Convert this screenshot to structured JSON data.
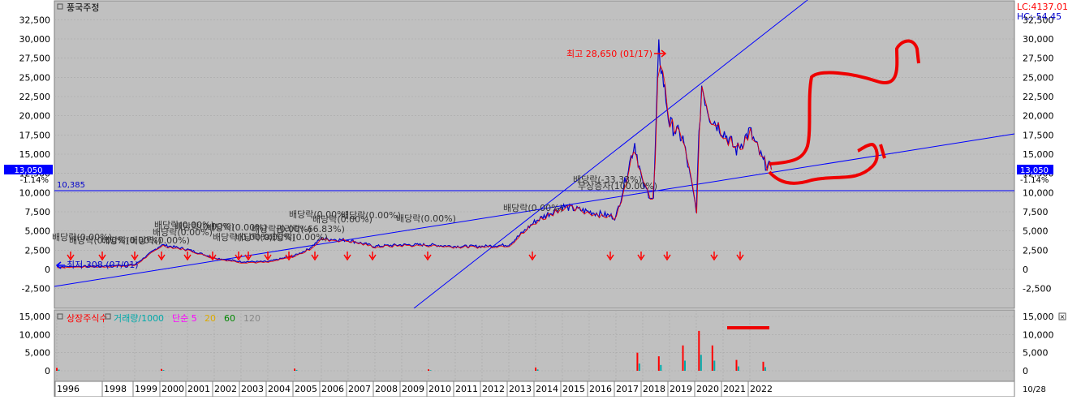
{
  "window": {
    "title": "풍국주정",
    "lc_readout": "LC:4137.01",
    "hc_readout": "HC:-54.45",
    "close_icon": "close-icon",
    "colors": {
      "plot_bg": "#c0c0c0",
      "panel_bg": "#ffffff",
      "grid": "#a8a8a8",
      "price_line": "#0000cc",
      "ref_line": "#0000ff",
      "annot_red": "#ff0000",
      "badge_bg": "#0000ff"
    }
  },
  "price_axis": {
    "ticks": [
      "32,500",
      "30,000",
      "27,500",
      "25,000",
      "22,500",
      "20,000",
      "17,500",
      "15,000",
      "12,500",
      "10,000",
      "7,500",
      "5,000",
      "2,500",
      "0",
      "-2,500"
    ],
    "current_price": "13,050",
    "current_change": "-1.14%",
    "ref_level_label": "10,385"
  },
  "volume_axis": {
    "ticks": [
      "15,000",
      "10,000",
      "5,000",
      "0"
    ]
  },
  "x_axis": {
    "years": [
      "1996",
      "1998",
      "1999",
      "2000",
      "2001",
      "2002",
      "2003",
      "2004",
      "2005",
      "2006",
      "2007",
      "2008",
      "2009",
      "2010",
      "2011",
      "2012",
      "2013",
      "2014",
      "2015",
      "2016",
      "2017",
      "2018",
      "2019",
      "2020",
      "2021",
      "2022"
    ],
    "right_label": "10/28"
  },
  "volume_legend": {
    "items": [
      {
        "label": "상장주식수",
        "color": "#ff0000"
      },
      {
        "label": "거래량/1000",
        "color": "#00aaaa"
      },
      {
        "label": "단순 5",
        "color": "#ff00ff"
      },
      {
        "label": "20",
        "color": "#ddaa00"
      },
      {
        "label": "60",
        "color": "#008800"
      },
      {
        "label": "120",
        "color": "#888888"
      }
    ]
  },
  "annotations": {
    "high": "최고 28,650 (01/17)",
    "low": "최저 308 (07/01)",
    "dividends": [
      "배당락(0.00%)",
      "배당락(0.00%)",
      "배당락(0.00%)",
      "배당락(0.00%)",
      "배당락(0.00%)",
      "배당락(0.00%)",
      "배당락(0.00%)",
      "배당락(0.00%)",
      "배당락(0.00%)",
      "배당락(0.00%)",
      "배당락(0.00%)",
      "배당락(0.00%)",
      "배당락(-33.33%)",
      "무상증자(100.00%)",
      "권리락(-66.83%)",
      "배당락(0.00%)",
      "배당락(0.00%)",
      "배당락(0.00%)",
      "배당락(0.00%)",
      "배당락(0.00%)"
    ]
  },
  "chart_data": {
    "type": "line",
    "title": "풍국주정",
    "series": [
      {
        "x": [
          "1996",
          "1997",
          "1998",
          "1999",
          "2000",
          "2001",
          "2002",
          "2003",
          "2004",
          "2005",
          "2005.5",
          "2006",
          "2007",
          "2008",
          "2009",
          "2010",
          "2011",
          "2012",
          "2013",
          "2014",
          "2015",
          "2016",
          "2017",
          "2017.7",
          "2018",
          "2018.4",
          "2018.6",
          "2019",
          "2019.5",
          "2020",
          "2020.1",
          "2020.2",
          "2020.5",
          "2021",
          "2021.5",
          "2022",
          "2022.5",
          "2022.8"
        ],
        "values": [
          350,
          400,
          450,
          600,
          3200,
          2600,
          1500,
          1000,
          1000,
          1800,
          2600,
          4000,
          3800,
          3000,
          3200,
          3200,
          3000,
          3000,
          3200,
          6300,
          8200,
          7500,
          6800,
          16500,
          11000,
          9000,
          28600,
          19000,
          17000,
          7800,
          17000,
          24000,
          20000,
          18000,
          15500,
          18000,
          14000,
          13050
        ]
      }
    ],
    "volume": {
      "x": [
        "1996",
        "2000",
        "2005",
        "2010",
        "2014",
        "2017.8",
        "2018.6",
        "2019.5",
        "2020.1",
        "2020.6",
        "2021.5",
        "2022.5"
      ],
      "values": [
        800,
        500,
        600,
        400,
        900,
        5000,
        4000,
        7000,
        11000,
        7000,
        3000,
        2500
      ]
    },
    "ylim": [
      -4000,
      34000
    ],
    "volume_ylim": [
      0,
      18000
    ],
    "reference_level": 10385,
    "grid": true
  }
}
